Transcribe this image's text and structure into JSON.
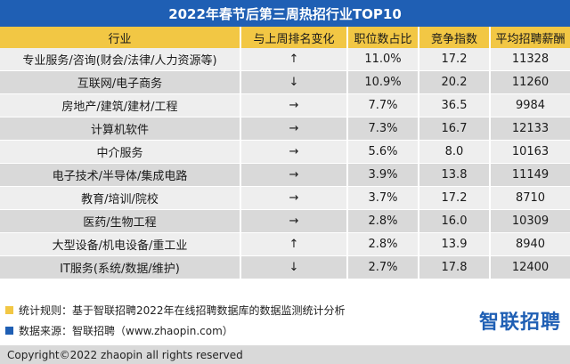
{
  "title": "2022年春节后第三周热招行业TOP10",
  "columns": [
    "行业",
    "与上周排名变化",
    "职位数占比",
    "竞争指数",
    "平均招聘薪酬"
  ],
  "rows": [
    {
      "industry": "专业服务/咨询(财会/法律/人力资源等)",
      "change": "↑",
      "share": "11.0%",
      "competition": "17.2",
      "salary": "11328"
    },
    {
      "industry": "互联网/电子商务",
      "change": "↓",
      "share": "10.9%",
      "competition": "20.2",
      "salary": "11260"
    },
    {
      "industry": "房地产/建筑/建材/工程",
      "change": "→",
      "share": "7.7%",
      "competition": "36.5",
      "salary": "9984"
    },
    {
      "industry": "计算机软件",
      "change": "→",
      "share": "7.3%",
      "competition": "16.7",
      "salary": "12133"
    },
    {
      "industry": "中介服务",
      "change": "→",
      "share": "5.6%",
      "competition": "8.0",
      "salary": "10163"
    },
    {
      "industry": "电子技术/半导体/集成电路",
      "change": "→",
      "share": "3.9%",
      "competition": "13.8",
      "salary": "11149"
    },
    {
      "industry": "教育/培训/院校",
      "change": "→",
      "share": "3.7%",
      "competition": "17.2",
      "salary": "8710"
    },
    {
      "industry": "医药/生物工程",
      "change": "→",
      "share": "2.8%",
      "competition": "16.0",
      "salary": "10309"
    },
    {
      "industry": "大型设备/机电设备/重工业",
      "change": "↑",
      "share": "2.8%",
      "competition": "13.9",
      "salary": "8940"
    },
    {
      "industry": "IT服务(系统/数据/维护)",
      "change": "↓",
      "share": "2.7%",
      "competition": "17.8",
      "salary": "12400"
    }
  ],
  "notes": {
    "rule": "统计规则：基于智联招聘2022年在线招聘数据库的数据监测统计分析",
    "source": "数据来源：智联招聘（www.zhaopin.com）"
  },
  "brand": "智联招聘",
  "copyright": "Copyright©2022 zhaopin all rights reserved",
  "colors": {
    "title_bg": "#1f5fb4",
    "header_bg": "#f2c744",
    "note_yellow": "#f2c744",
    "note_blue": "#1f5fb4"
  }
}
